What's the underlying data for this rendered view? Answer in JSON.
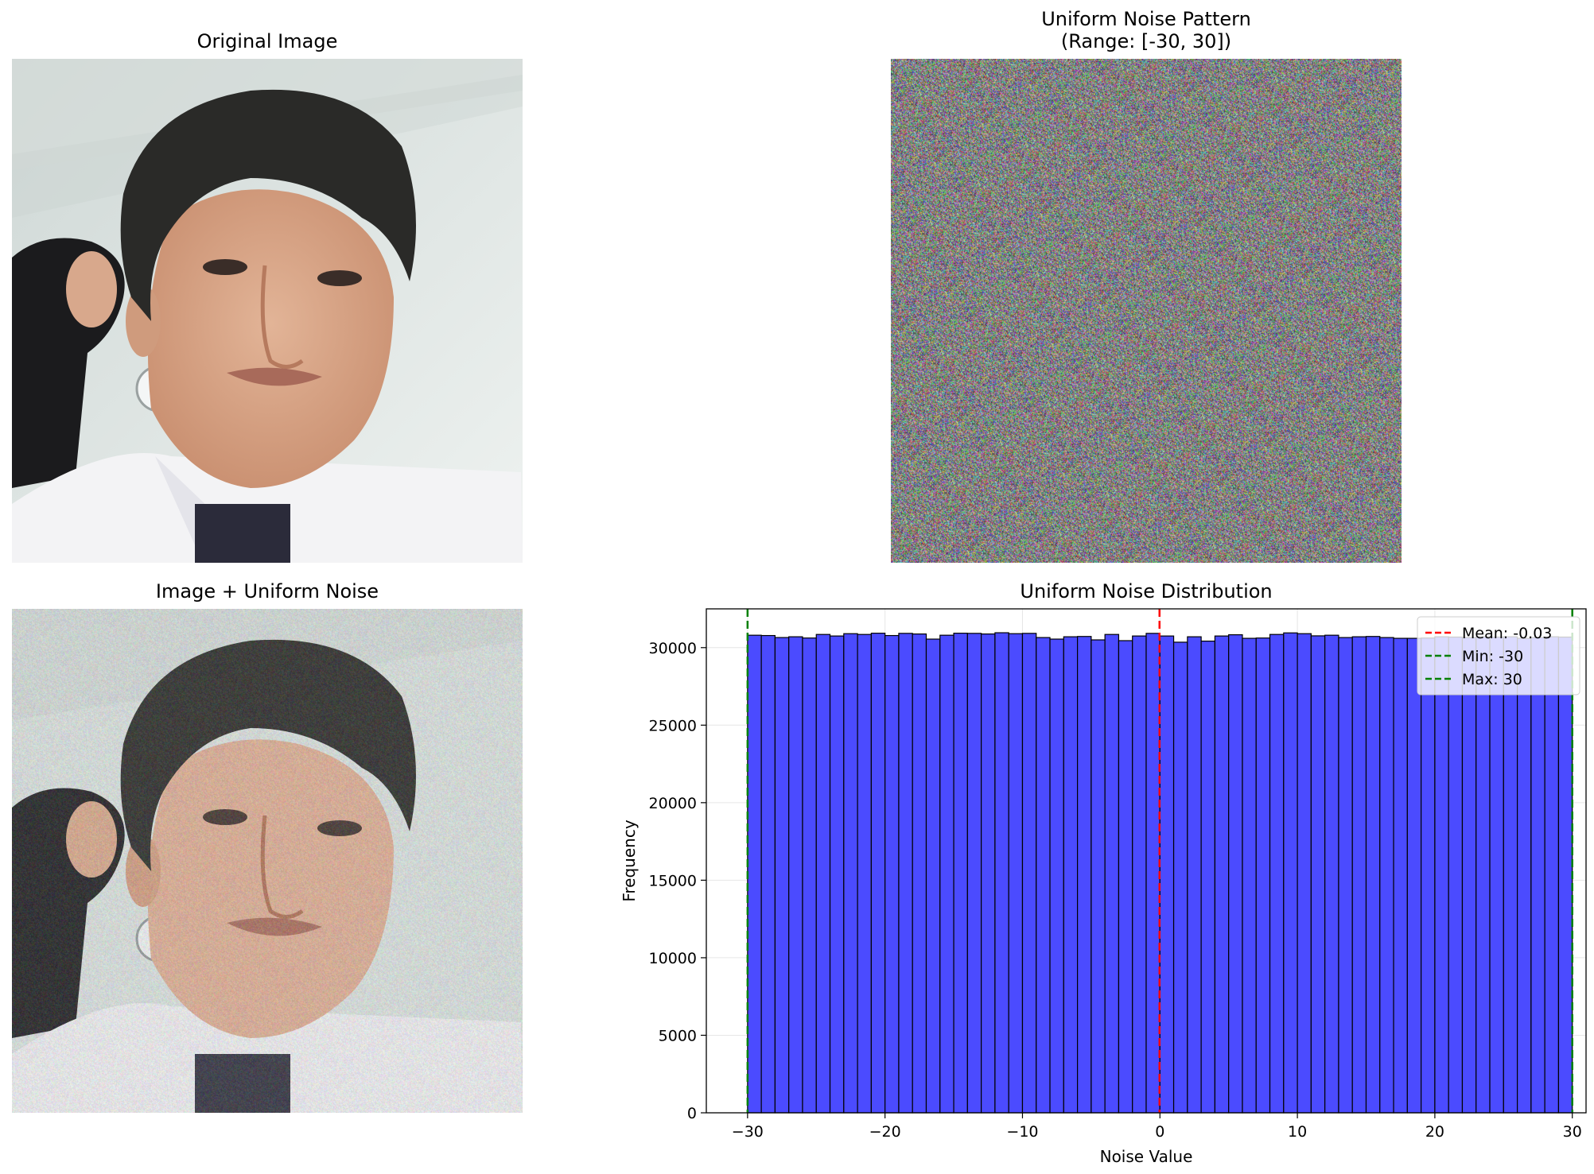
{
  "panels": {
    "original_title": "Original Image",
    "noise_title_line1": "Uniform Noise Pattern",
    "noise_title_line2": "(Range: [-30, 30])",
    "noisy_title": "Image + Uniform Noise",
    "hist_title": "Uniform Noise Distribution"
  },
  "photo": {
    "wall_color": "#e3e9e6",
    "ceiling_color": "#d2d9d6",
    "hair_color": "#2a2a28",
    "skin_color": "#d9a88a",
    "shirt_color": "#f3f3f5",
    "hijab_color": "#1b1b1d",
    "clock_color": "#f4f6f6"
  },
  "chart_data": {
    "type": "bar",
    "title": "Uniform Noise Distribution",
    "xlabel": "Noise Value",
    "ylabel": "Frequency",
    "xlim": [
      -33,
      31
    ],
    "ylim": [
      0,
      32500
    ],
    "xticks": [
      -30,
      -20,
      -10,
      0,
      10,
      20,
      30
    ],
    "xtick_labels": [
      "−30",
      "−20",
      "−10",
      "0",
      "10",
      "20",
      "30"
    ],
    "yticks": [
      0,
      5000,
      10000,
      15000,
      20000,
      25000,
      30000
    ],
    "ytick_labels": [
      "0",
      "5000",
      "10000",
      "15000",
      "20000",
      "25000",
      "30000"
    ],
    "bin_start": -30,
    "bin_end": 30,
    "values": [
      30800,
      30780,
      30650,
      30700,
      30620,
      30850,
      30750,
      30900,
      30850,
      30930,
      30780,
      30920,
      30880,
      30550,
      30800,
      30930,
      30920,
      30880,
      30960,
      30900,
      30920,
      30650,
      30550,
      30700,
      30720,
      30500,
      30850,
      30450,
      30750,
      30920,
      30750,
      30350,
      30700,
      30420,
      30750,
      30830,
      30600,
      30620,
      30850,
      30950,
      30900,
      30760,
      30800,
      30650,
      30700,
      30720,
      30650,
      30600,
      30600,
      30620,
      30700,
      30680,
      30650,
      30700,
      30680,
      30700,
      30600,
      30650,
      30700,
      30680
    ],
    "bar_color": "#4b4bff",
    "bar_edge": "#000000",
    "grid": true,
    "lines": [
      {
        "label": "Mean: -0.03",
        "x": -0.03,
        "color": "#ff0000"
      },
      {
        "label": "Min: -30",
        "x": -30,
        "color": "#008000"
      },
      {
        "label": "Max: 30",
        "x": 30,
        "color": "#008000"
      }
    ],
    "legend_position": "upper right"
  }
}
